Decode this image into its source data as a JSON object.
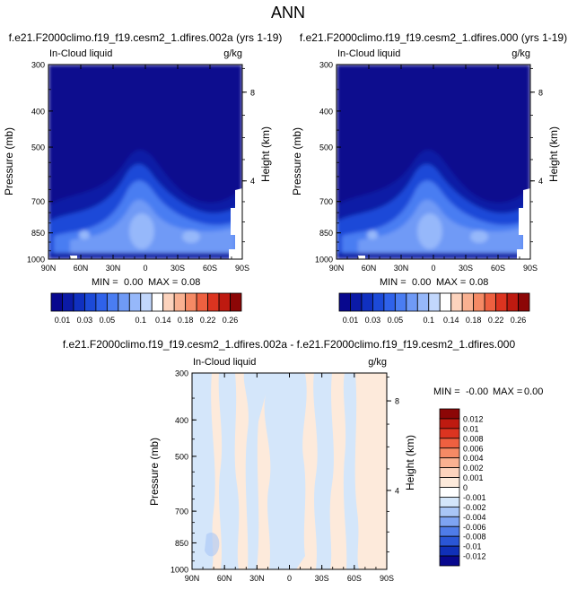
{
  "figure": {
    "title": "ANN",
    "colors": {
      "background": "#ffffff",
      "frame": "#000000"
    }
  },
  "chart_data": [
    {
      "type": "heatmap",
      "panel": "top-left",
      "title": "f.e21.F2000climo.f19_f19.cesm2_1.dfires.002a (yrs 1-19)",
      "subtitle_left": "In-Cloud liquid",
      "subtitle_right": "g/kg",
      "xlabel": "",
      "ylabel": "Pressure (mb)",
      "y2label": "Height (km)",
      "x_ticks": [
        "90N",
        "60N",
        "30N",
        "0",
        "30S",
        "60S",
        "90S"
      ],
      "x_values": [
        90,
        60,
        30,
        0,
        -30,
        -60,
        -90
      ],
      "xlim": [
        90,
        -90
      ],
      "y_ticks": [
        "300",
        "400",
        "500",
        "700",
        "850",
        "1000"
      ],
      "y_values": [
        300,
        400,
        500,
        700,
        850,
        1000
      ],
      "ylim": [
        300,
        1000
      ],
      "y2_ticks": [
        "8",
        "4"
      ],
      "y2_values": [
        8,
        4
      ],
      "stats": {
        "min_label": "MIN =",
        "min": "0.00",
        "max_label": "MAX =",
        "max": "0.08"
      },
      "colorbar": {
        "orientation": "horizontal",
        "levels": [
          0.01,
          0.02,
          0.03,
          0.04,
          0.05,
          0.06,
          0.08,
          0.1,
          0.12,
          0.14,
          0.16,
          0.18,
          0.2,
          0.22,
          0.24,
          0.26
        ],
        "tick_labels": [
          "0.01",
          "0.03",
          "0.05",
          "0.1",
          "0.14",
          "0.18",
          "0.22",
          "0.26"
        ],
        "colors": [
          "#08088e",
          "#0b1aa6",
          "#1030c0",
          "#1c4ad8",
          "#2f62ea",
          "#4a7df2",
          "#6f9af6",
          "#96b8fa",
          "#c2d7fc",
          "#ffffff",
          "#fcd3bd",
          "#f9b191",
          "#f58a65",
          "#ee6040",
          "#dc3420",
          "#be1a10",
          "#8c0606"
        ]
      }
    },
    {
      "type": "heatmap",
      "panel": "top-right",
      "title": "f.e21.F2000climo.f19_f19.cesm2_1.dfires.000 (yrs 1-19)",
      "subtitle_left": "In-Cloud liquid",
      "subtitle_right": "g/kg",
      "xlabel": "",
      "ylabel": "Pressure (mb)",
      "y2label": "Height (km)",
      "x_ticks": [
        "90N",
        "60N",
        "30N",
        "0",
        "30S",
        "60S",
        "90S"
      ],
      "x_values": [
        90,
        60,
        30,
        0,
        -30,
        -60,
        -90
      ],
      "xlim": [
        90,
        -90
      ],
      "y_ticks": [
        "300",
        "400",
        "500",
        "700",
        "850",
        "1000"
      ],
      "y_values": [
        300,
        400,
        500,
        700,
        850,
        1000
      ],
      "ylim": [
        300,
        1000
      ],
      "y2_ticks": [
        "8",
        "4"
      ],
      "y2_values": [
        8,
        4
      ],
      "stats": {
        "min_label": "MIN =",
        "min": "0.00",
        "max_label": "MAX =",
        "max": "0.08"
      },
      "colorbar": {
        "orientation": "horizontal",
        "levels": [
          0.01,
          0.02,
          0.03,
          0.04,
          0.05,
          0.06,
          0.08,
          0.1,
          0.12,
          0.14,
          0.16,
          0.18,
          0.2,
          0.22,
          0.24,
          0.26
        ],
        "tick_labels": [
          "0.01",
          "0.03",
          "0.05",
          "0.1",
          "0.14",
          "0.18",
          "0.22",
          "0.26"
        ],
        "colors": [
          "#08088e",
          "#0b1aa6",
          "#1030c0",
          "#1c4ad8",
          "#2f62ea",
          "#4a7df2",
          "#6f9af6",
          "#96b8fa",
          "#c2d7fc",
          "#ffffff",
          "#fcd3bd",
          "#f9b191",
          "#f58a65",
          "#ee6040",
          "#dc3420",
          "#be1a10",
          "#8c0606"
        ]
      }
    },
    {
      "type": "heatmap",
      "panel": "bottom-center",
      "title": "f.e21.F2000climo.f19_f19.cesm2_1.dfires.002a - f.e21.F2000climo.f19_f19.cesm2_1.dfires.000",
      "subtitle_left": "In-Cloud liquid",
      "subtitle_right": "g/kg",
      "xlabel": "",
      "ylabel": "Pressure (mb)",
      "y2label": "Height (km)",
      "x_ticks": [
        "90N",
        "60N",
        "30N",
        "0",
        "30S",
        "60S",
        "90S"
      ],
      "x_values": [
        90,
        60,
        30,
        0,
        -30,
        -60,
        -90
      ],
      "xlim": [
        90,
        -90
      ],
      "y_ticks": [
        "300",
        "400",
        "500",
        "700",
        "850",
        "1000"
      ],
      "y_values": [
        300,
        400,
        500,
        700,
        850,
        1000
      ],
      "ylim": [
        300,
        1000
      ],
      "y2_ticks": [
        "8",
        "4"
      ],
      "y2_values": [
        8,
        4
      ],
      "stats": {
        "min_label": "MIN =",
        "min": "-0.00",
        "max_label": "MAX =",
        "max": "0.00"
      },
      "colorbar": {
        "orientation": "vertical",
        "levels": [
          -0.012,
          -0.01,
          -0.008,
          -0.006,
          -0.004,
          -0.002,
          -0.001,
          0,
          0.001,
          0.002,
          0.004,
          0.006,
          0.008,
          0.01,
          0.012
        ],
        "tick_labels": [
          "0.012",
          "0.01",
          "0.008",
          "0.006",
          "0.004",
          "0.002",
          "0.001",
          "0",
          "-0.001",
          "-0.002",
          "-0.004",
          "-0.006",
          "-0.008",
          "-0.01",
          "-0.012"
        ],
        "colors": [
          "#8c0606",
          "#be1a10",
          "#dc3420",
          "#ee6040",
          "#f58a65",
          "#f9b191",
          "#fcd3bd",
          "#fdeadb",
          "#ffffff",
          "#d4e6fa",
          "#a9c6f6",
          "#7ea4f2",
          "#4f7ce8",
          "#2a56d6",
          "#1030b8",
          "#08088e"
        ]
      }
    }
  ]
}
